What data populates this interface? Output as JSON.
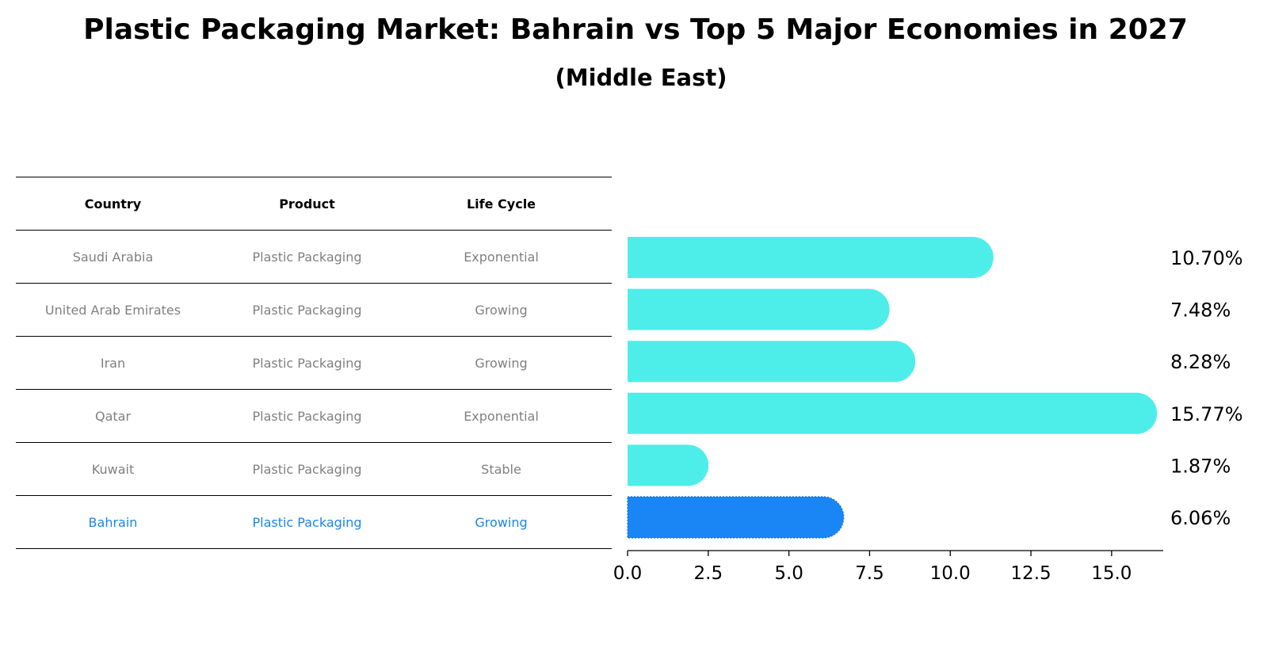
{
  "title": "Plastic Packaging Market: Bahrain vs Top 5 Major Economies in 2027",
  "subtitle": "(Middle East)",
  "table": {
    "headers": [
      "Country",
      "Product",
      "Life Cycle"
    ],
    "rows": [
      {
        "country": "Saudi Arabia",
        "product": "Plastic Packaging",
        "life_cycle": "Exponential",
        "highlight": false
      },
      {
        "country": "United Arab Emirates",
        "product": "Plastic Packaging",
        "life_cycle": "Growing",
        "highlight": false
      },
      {
        "country": "Iran",
        "product": "Plastic Packaging",
        "life_cycle": "Growing",
        "highlight": false
      },
      {
        "country": "Qatar",
        "product": "Plastic Packaging",
        "life_cycle": "Exponential",
        "highlight": false
      },
      {
        "country": "Kuwait",
        "product": "Plastic Packaging",
        "life_cycle": "Stable",
        "highlight": false
      },
      {
        "country": "Bahrain",
        "product": "Plastic Packaging",
        "life_cycle": "Growing",
        "highlight": true
      }
    ]
  },
  "colors": {
    "bar": "#4deeea",
    "highlight_bar": "#1a86f5",
    "highlight_text": "#1a86e8",
    "muted_text": "#808080"
  },
  "chart_data": {
    "type": "bar",
    "orientation": "horizontal",
    "categories": [
      "Saudi Arabia",
      "United Arab Emirates",
      "Iran",
      "Qatar",
      "Kuwait",
      "Bahrain"
    ],
    "values": [
      10.7,
      7.48,
      8.28,
      15.77,
      1.87,
      6.06
    ],
    "value_labels": [
      "10.70%",
      "7.48%",
      "8.28%",
      "15.77%",
      "1.87%",
      "6.06%"
    ],
    "highlight_index": 5,
    "xlim": [
      0,
      16.6
    ],
    "xticks": [
      0.0,
      2.5,
      5.0,
      7.5,
      10.0,
      12.5,
      15.0
    ],
    "xtick_labels": [
      "0.0",
      "2.5",
      "5.0",
      "7.5",
      "10.0",
      "12.5",
      "15.0"
    ],
    "grid": false,
    "legend": "none"
  }
}
